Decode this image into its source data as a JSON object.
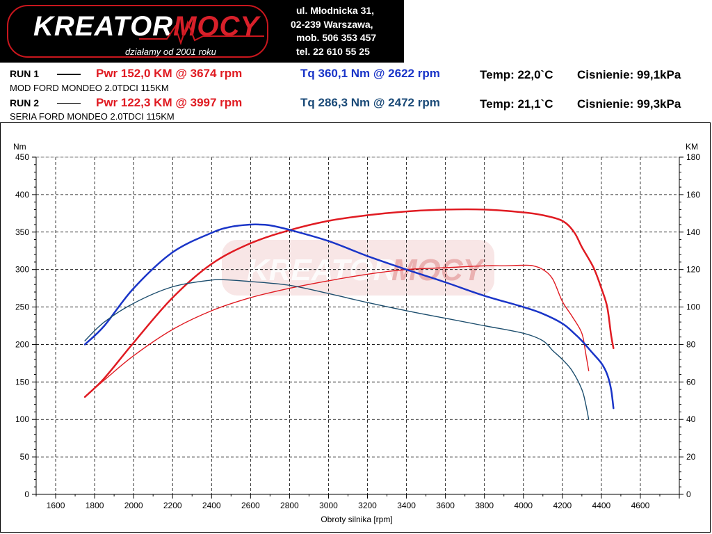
{
  "header": {
    "logo_word_main": "KREATOR",
    "logo_word_accent": "MOCY",
    "slogan": "działamy od 2001 roku",
    "address_lines": [
      "ul. Młodnicka 31,",
      "02-239  Warszawa,",
      "mob.  506 353 457",
      "tel.  22 610 55 25"
    ]
  },
  "runs": [
    {
      "label": "RUN 1",
      "pwr": "Pwr  152,0 KM @ 3674 rpm",
      "tq": "Tq 360,1 Nm @ 2622 rpm",
      "temp": "Temp: 22,0`C",
      "pressure": "Cisnienie: 99,1kPa",
      "description": "MOD FORD MONDEO 2.0TDCI 115KM"
    },
    {
      "label": "RUN 2",
      "pwr": "Pwr  122,3 KM @ 3997 rpm",
      "tq": "Tq 286,3 Nm @ 2472 rpm",
      "temp": "Temp: 21,1`C",
      "pressure": "Cisnienie: 99,3kPa",
      "description": "SERIA FORD MONDEO 2.0TDCI 115KM"
    }
  ],
  "colors": {
    "power": "#e01b22",
    "torque_run1": "#1a35c8",
    "torque_run2": "#1d4e6e",
    "watermark": "#e8b4b4"
  },
  "chart_data": {
    "type": "line",
    "xlabel": "Obroty silnika [rpm]",
    "ylabel_left": "Nm",
    "ylabel_right": "KM",
    "xlim": [
      1500,
      4800
    ],
    "ylim_left": [
      0,
      450
    ],
    "ylim_right": [
      0,
      180
    ],
    "x_ticks": [
      1600,
      1800,
      2000,
      2200,
      2400,
      2600,
      2800,
      3000,
      3200,
      3400,
      3600,
      3800,
      4000,
      4200,
      4400,
      4600
    ],
    "y_ticks_left": [
      0,
      50,
      100,
      150,
      200,
      250,
      300,
      350,
      400,
      450
    ],
    "y_ticks_right": [
      0,
      20,
      40,
      60,
      80,
      100,
      120,
      140,
      160,
      180
    ],
    "grid": true,
    "series": [
      {
        "name": "Pwr RUN 1",
        "axis": "right",
        "color": "#e01b22",
        "width": 2.5,
        "x": [
          1750,
          1850,
          2000,
          2200,
          2400,
          2600,
          2800,
          3000,
          3200,
          3400,
          3600,
          3800,
          4000,
          4100,
          4200,
          4260,
          4300,
          4360,
          4400,
          4430,
          4450,
          4462
        ],
        "y": [
          52,
          62,
          81,
          105,
          123,
          134,
          141,
          146,
          149,
          151,
          152,
          152,
          150.5,
          149,
          146,
          140,
          132,
          121,
          110,
          100,
          85,
          78
        ]
      },
      {
        "name": "Pwr RUN 2",
        "axis": "right",
        "color": "#e01b22",
        "width": 1.4,
        "x": [
          1750,
          1850,
          2000,
          2200,
          2400,
          2600,
          2800,
          3000,
          3200,
          3400,
          3600,
          3800,
          3900,
          4000,
          4050,
          4100,
          4150,
          4200,
          4250,
          4300,
          4320,
          4335
        ],
        "y": [
          52,
          61,
          74,
          88,
          98,
          105,
          110,
          114,
          117.5,
          120,
          121,
          122,
          122,
          122.3,
          122,
          120,
          115,
          103,
          95,
          86,
          75,
          66
        ]
      },
      {
        "name": "Tq RUN 1",
        "axis": "left",
        "color": "#1a35c8",
        "width": 2.5,
        "x": [
          1750,
          1850,
          2000,
          2200,
          2400,
          2500,
          2600,
          2650,
          2700,
          2800,
          3000,
          3200,
          3400,
          3600,
          3800,
          4000,
          4100,
          4200,
          4260,
          4300,
          4350,
          4400,
          4430,
          4450,
          4462
        ],
        "y": [
          200,
          225,
          275,
          323,
          349,
          357,
          360,
          360,
          359,
          353,
          338,
          318,
          300,
          283,
          265,
          250,
          241,
          228,
          215,
          205,
          190,
          175,
          160,
          140,
          115
        ]
      },
      {
        "name": "Tq RUN 2",
        "axis": "left",
        "color": "#1d4e6e",
        "width": 1.4,
        "x": [
          1750,
          1850,
          2000,
          2200,
          2400,
          2472,
          2600,
          2800,
          3000,
          3200,
          3400,
          3600,
          3800,
          4000,
          4100,
          4150,
          4200,
          4250,
          4300,
          4320,
          4335
        ],
        "y": [
          205,
          230,
          255,
          277,
          286,
          286.3,
          284,
          279,
          268,
          256,
          245,
          235,
          225,
          215,
          205,
          192,
          180,
          165,
          140,
          120,
          100
        ]
      }
    ]
  }
}
